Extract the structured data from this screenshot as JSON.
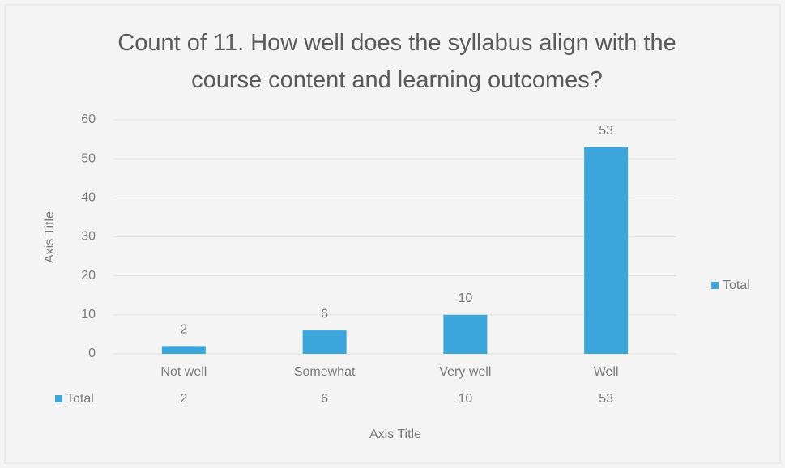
{
  "chart_data": {
    "type": "bar",
    "title": "Count of 11. How well does the syllabus align with the course content and learning outcomes?",
    "categories": [
      "Not well",
      "Somewhat",
      "Very well",
      "Well"
    ],
    "series": [
      {
        "name": "Total",
        "color": "#3aa6dc",
        "values": [
          2,
          6,
          10,
          53
        ]
      }
    ],
    "ylim": [
      0,
      60
    ],
    "yticks": [
      0,
      10,
      20,
      30,
      40,
      50,
      60
    ],
    "x_axis_label": "Axis Title",
    "y_axis_label": "Axis Title",
    "grid": true,
    "legend": "right",
    "data_table": true
  }
}
